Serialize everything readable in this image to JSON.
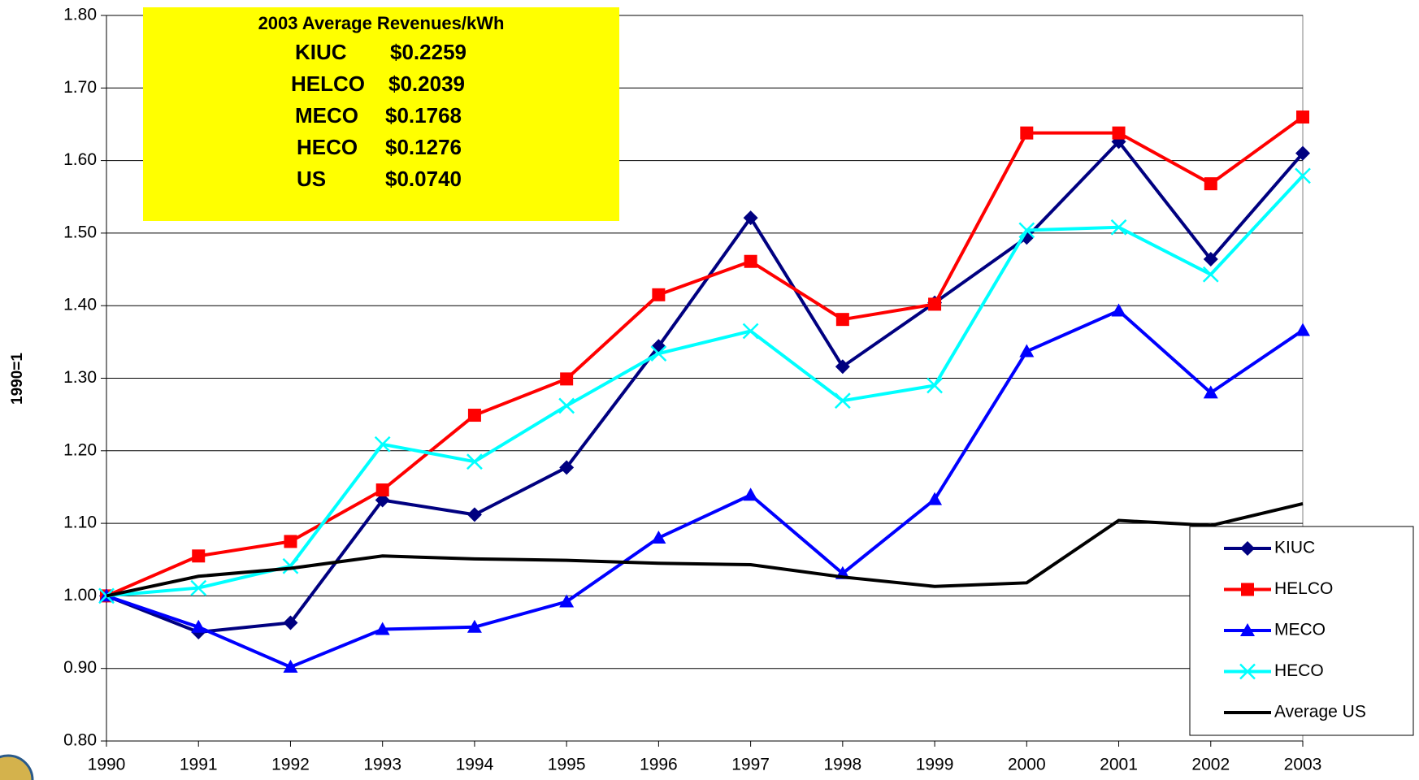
{
  "chart_data": {
    "type": "line",
    "y_label": "1990=1",
    "categories": [
      "1990",
      "1991",
      "1992",
      "1993",
      "1994",
      "1995",
      "1996",
      "1997",
      "1998",
      "1999",
      "2000",
      "2001",
      "2002",
      "2003"
    ],
    "ylim": [
      0.8,
      1.8
    ],
    "yticks": [
      {
        "value": 0.8,
        "label": "0.80"
      },
      {
        "value": 0.9,
        "label": "0.90"
      },
      {
        "value": 1.0,
        "label": "1.00"
      },
      {
        "value": 1.1,
        "label": "1.10"
      },
      {
        "value": 1.2,
        "label": "1.20"
      },
      {
        "value": 1.3,
        "label": "1.30"
      },
      {
        "value": 1.4,
        "label": "1.40"
      },
      {
        "value": 1.5,
        "label": "1.50"
      },
      {
        "value": 1.6,
        "label": "1.60"
      },
      {
        "value": 1.7,
        "label": "1.70"
      },
      {
        "value": 1.8,
        "label": "1.80"
      }
    ],
    "grid": true,
    "legend": "lower right",
    "series": [
      {
        "name": "KIUC",
        "color": "#000080",
        "marker": "diamond",
        "values": [
          1.0,
          0.95,
          0.963,
          1.132,
          1.112,
          1.177,
          1.344,
          1.521,
          1.316,
          1.404,
          1.494,
          1.626,
          1.464,
          1.61
        ]
      },
      {
        "name": "HELCO",
        "color": "#ff0000",
        "marker": "square",
        "values": [
          1.0,
          1.055,
          1.075,
          1.146,
          1.249,
          1.299,
          1.415,
          1.461,
          1.381,
          1.402,
          1.638,
          1.638,
          1.568,
          1.66
        ]
      },
      {
        "name": "MECO",
        "color": "#0000ff",
        "marker": "triangle",
        "values": [
          1.0,
          0.957,
          0.902,
          0.954,
          0.957,
          0.992,
          1.08,
          1.139,
          1.031,
          1.133,
          1.337,
          1.393,
          1.28,
          1.366
        ]
      },
      {
        "name": "HECO",
        "color": "#00ffff",
        "marker": "x",
        "values": [
          1.0,
          1.011,
          1.041,
          1.209,
          1.185,
          1.262,
          1.334,
          1.365,
          1.269,
          1.29,
          1.504,
          1.508,
          1.443,
          1.579
        ]
      },
      {
        "name": "Average US",
        "color": "#000000",
        "marker": "none",
        "values": [
          1.0,
          1.027,
          1.038,
          1.055,
          1.051,
          1.049,
          1.045,
          1.043,
          1.026,
          1.013,
          1.018,
          1.104,
          1.097,
          1.127
        ]
      }
    ],
    "annotation": {
      "title": "2003 Average Revenues/kWh",
      "rows": [
        [
          "KIUC",
          "$0.2259"
        ],
        [
          "HELCO",
          "$0.2039"
        ],
        [
          "MECO",
          "$0.1768"
        ],
        [
          "HECO",
          "$0.1276"
        ],
        [
          "US",
          "$0.0740"
        ]
      ]
    }
  }
}
